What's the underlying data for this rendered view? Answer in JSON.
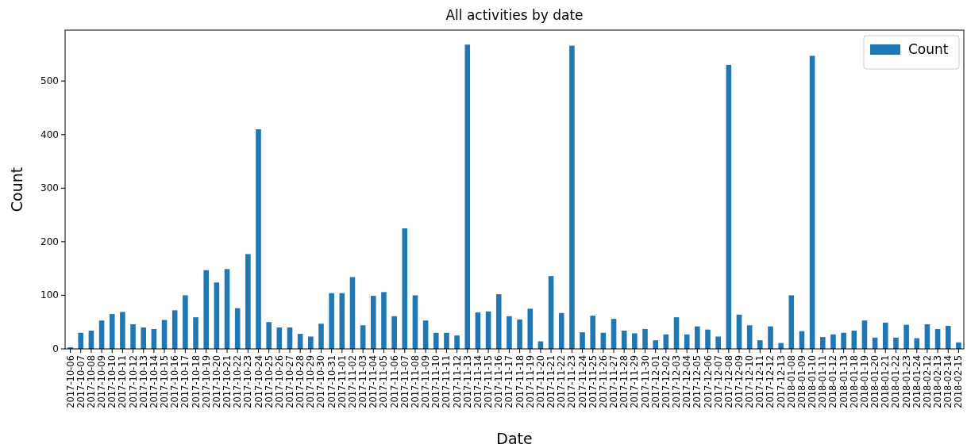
{
  "chart_data": {
    "type": "bar",
    "title": "All activities by date",
    "xlabel": "Date",
    "ylabel": "Count",
    "categories": [
      "2017-10-06",
      "2017-10-07",
      "2017-10-08",
      "2017-10-09",
      "2017-10-10",
      "2017-10-11",
      "2017-10-12",
      "2017-10-13",
      "2017-10-14",
      "2017-10-15",
      "2017-10-16",
      "2017-10-17",
      "2017-10-18",
      "2017-10-19",
      "2017-10-20",
      "2017-10-21",
      "2017-10-22",
      "2017-10-23",
      "2017-10-24",
      "2017-10-25",
      "2017-10-26",
      "2017-10-27",
      "2017-10-28",
      "2017-10-29",
      "2017-10-30",
      "2017-10-31",
      "2017-11-01",
      "2017-11-02",
      "2017-11-03",
      "2017-11-04",
      "2017-11-05",
      "2017-11-06",
      "2017-11-07",
      "2017-11-08",
      "2017-11-09",
      "2017-11-10",
      "2017-11-11",
      "2017-11-12",
      "2017-11-13",
      "2017-11-14",
      "2017-11-15",
      "2017-11-16",
      "2017-11-17",
      "2017-11-18",
      "2017-11-19",
      "2017-11-20",
      "2017-11-21",
      "2017-11-22",
      "2017-11-23",
      "2017-11-24",
      "2017-11-25",
      "2017-11-26",
      "2017-11-27",
      "2017-11-28",
      "2017-11-29",
      "2017-11-30",
      "2017-12-01",
      "2017-12-02",
      "2017-12-03",
      "2017-12-04",
      "2017-12-05",
      "2017-12-06",
      "2017-12-07",
      "2017-12-08",
      "2017-12-09",
      "2017-12-10",
      "2017-12-11",
      "2017-12-12",
      "2017-12-13",
      "2018-01-08",
      "2018-01-09",
      "2018-01-10",
      "2018-01-11",
      "2018-01-12",
      "2018-01-13",
      "2018-01-18",
      "2018-01-19",
      "2018-01-20",
      "2018-01-21",
      "2018-01-22",
      "2018-01-23",
      "2018-01-24",
      "2018-02-12",
      "2018-02-13",
      "2018-02-14",
      "2018-02-15"
    ],
    "series": [
      {
        "name": "Count",
        "color": "#1f77b4",
        "values": [
          3,
          30,
          34,
          53,
          65,
          69,
          46,
          40,
          37,
          54,
          72,
          100,
          59,
          147,
          124,
          149,
          76,
          177,
          410,
          50,
          40,
          40,
          28,
          23,
          47,
          104,
          104,
          134,
          44,
          99,
          106,
          61,
          225,
          100,
          53,
          30,
          30,
          25,
          568,
          68,
          70,
          102,
          61,
          55,
          75,
          14,
          136,
          67,
          566,
          31,
          62,
          30,
          56,
          34,
          29,
          37,
          16,
          27,
          59,
          27,
          42,
          36,
          23,
          530,
          64,
          44,
          16,
          42,
          11,
          100,
          33,
          547,
          22,
          27,
          30,
          34,
          53,
          21,
          49,
          21,
          45,
          20,
          46,
          37,
          43,
          12
        ]
      }
    ],
    "ylim": [
      0,
      595
    ],
    "yticks": [
      0,
      100,
      200,
      300,
      400,
      500
    ],
    "legend": "top right"
  }
}
